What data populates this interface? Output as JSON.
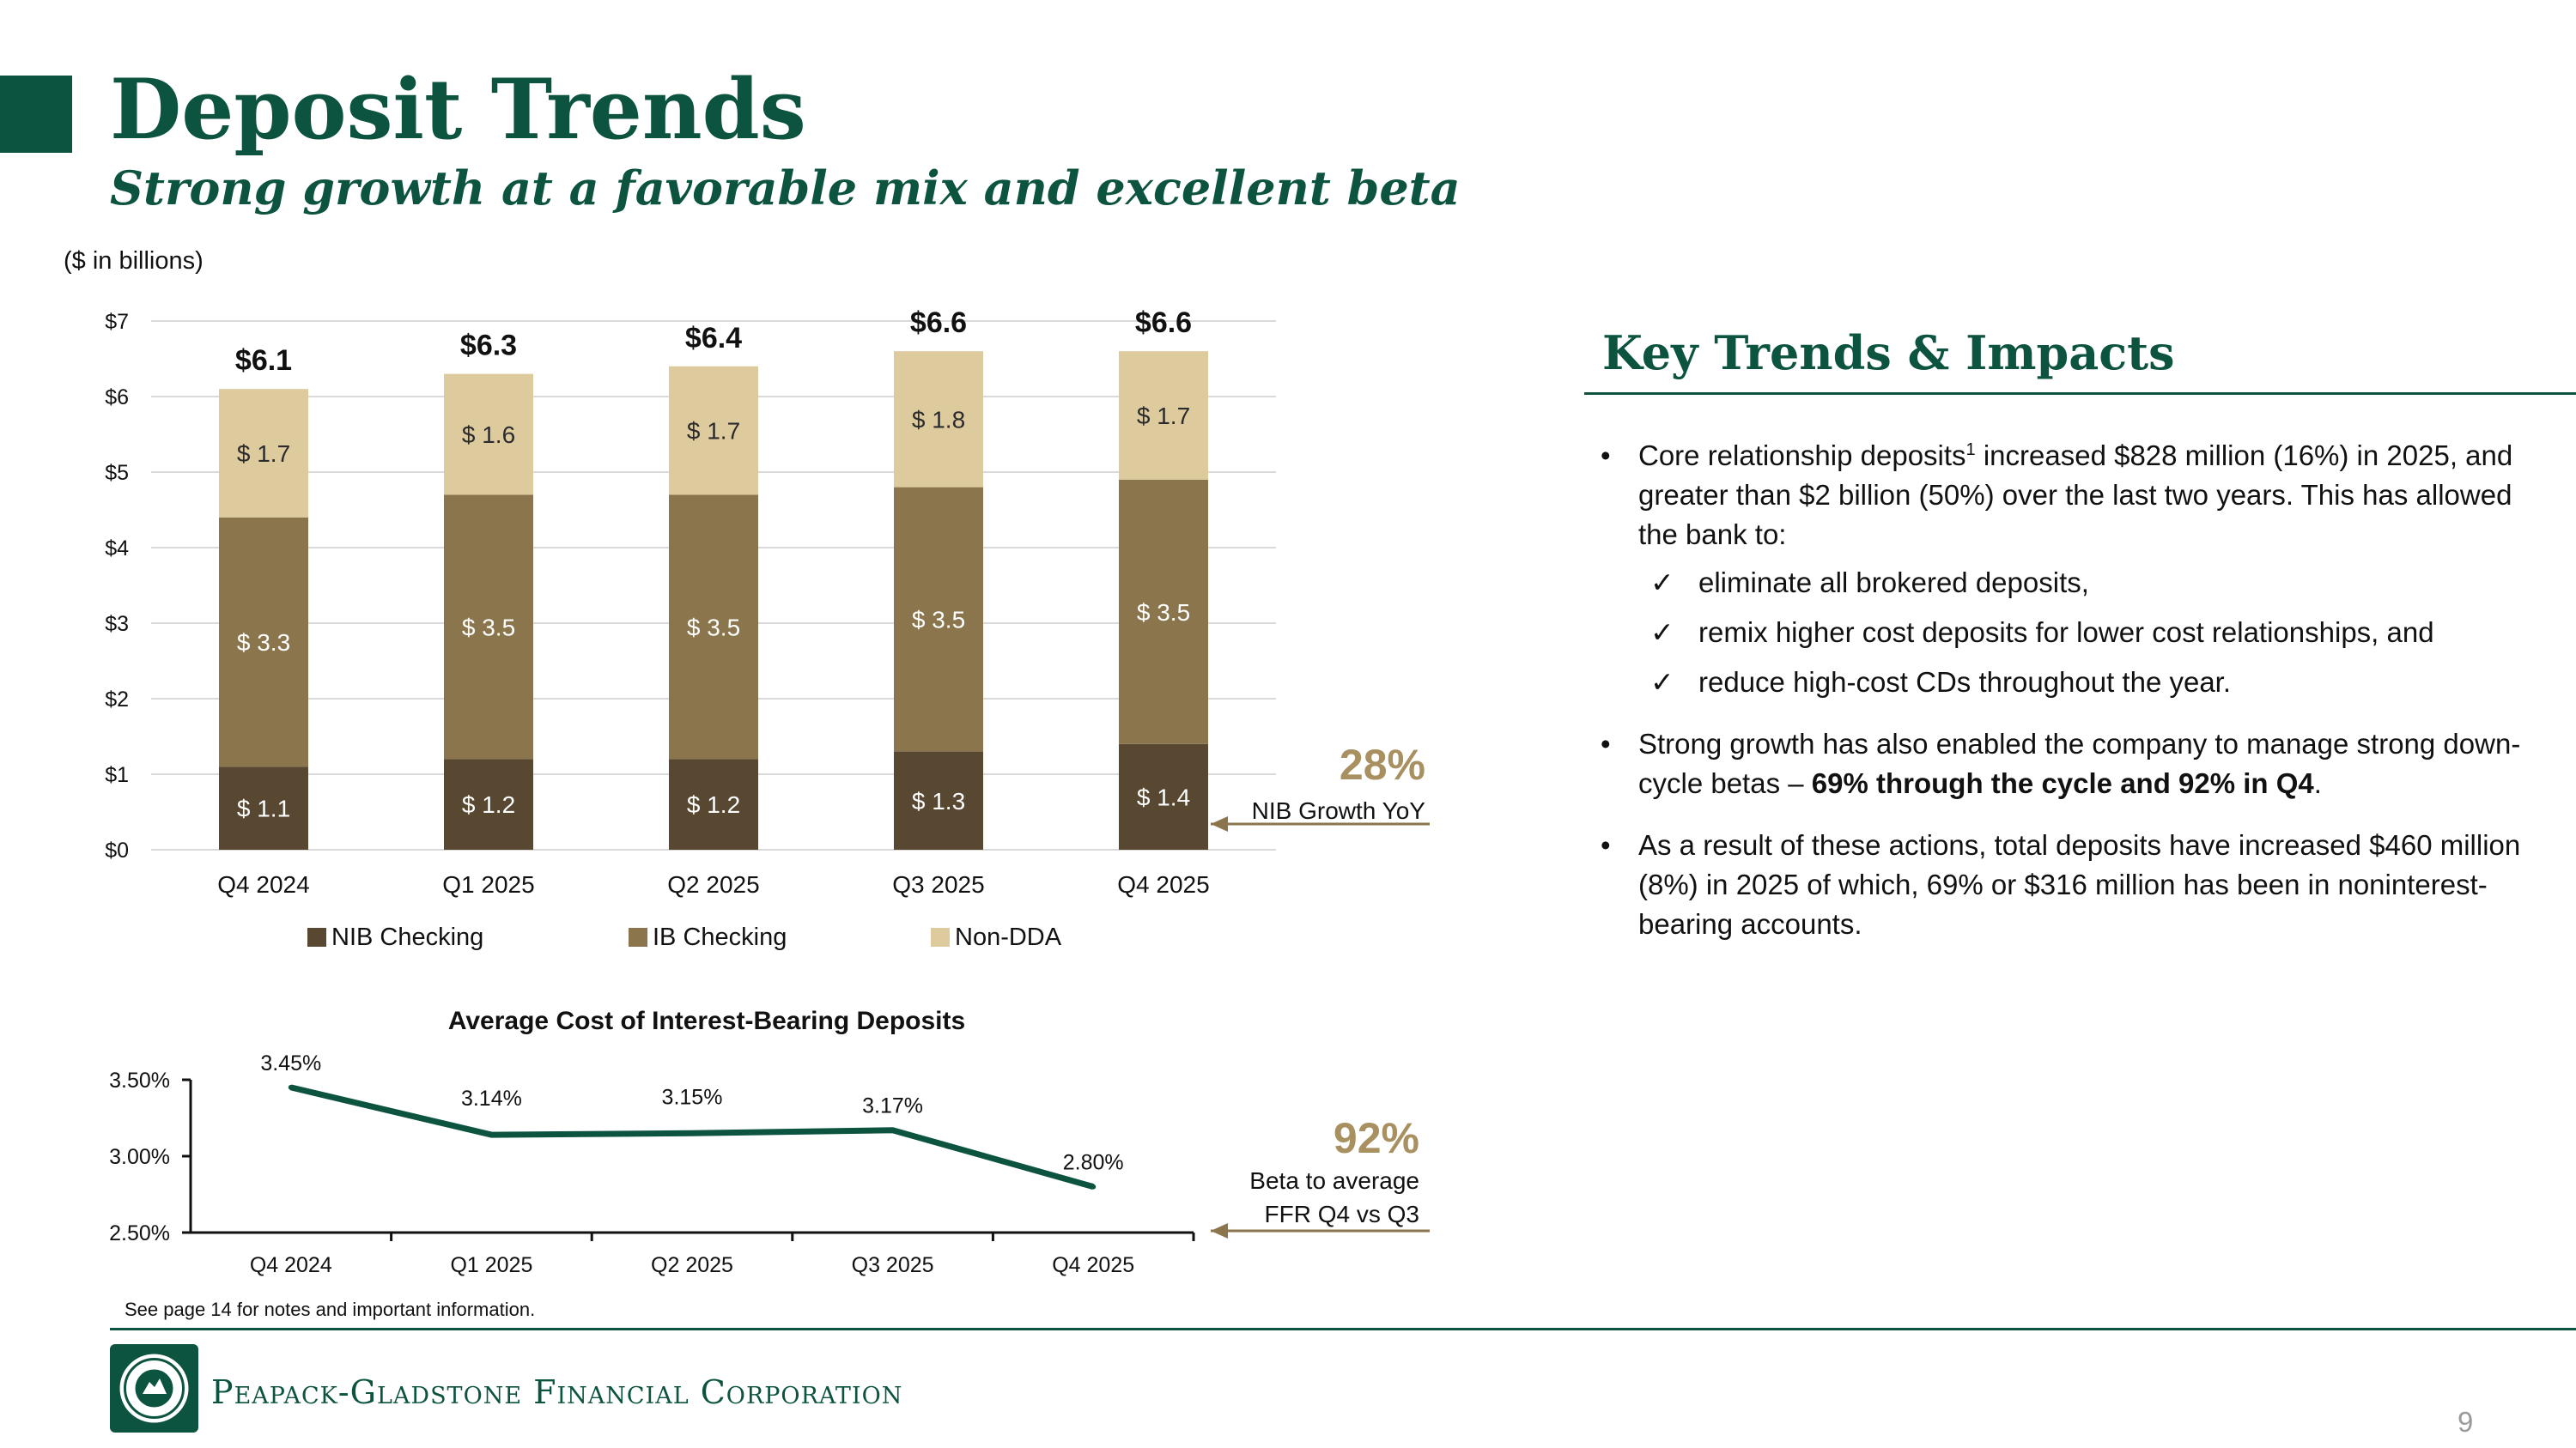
{
  "slide": {
    "title": "Deposit Trends",
    "subtitle": "Strong growth at a favorable mix and excellent beta",
    "units": "($ in billions)",
    "page_number": "9",
    "footnote": "See page 14 for notes and important information.",
    "company": "Peapack-Gladstone Financial Corporation"
  },
  "callouts": {
    "nib_value": "28%",
    "nib_label": "NIB Growth YoY",
    "beta_value": "92%",
    "beta_label_1": "Beta to average",
    "beta_label_2": "FFR Q4 vs Q3"
  },
  "key_trends": {
    "title": "Key Trends & Impacts",
    "bullet1_a": "Core relationship deposits",
    "bullet1_sup": "1",
    "bullet1_b": " increased $828 million (16%) in 2025, and greater than $2 billion (50%) over the last two years. This has allowed the bank to:",
    "checks": [
      "eliminate all brokered deposits,",
      "remix higher cost deposits for lower cost relationships, and",
      "reduce high-cost CDs throughout the year."
    ],
    "bullet2_a": "Strong growth has also enabled the company to manage strong down-cycle betas – ",
    "bullet2_bold": "69% through the cycle and 92% in Q4",
    "bullet2_c": ".",
    "bullet3": "As a result of these actions, total deposits have increased $460 million (8%) in 2025 of which, 69% or $316 million has been in noninterest-bearing accounts.",
    "bullet_glyph": "•",
    "check_glyph": "✓"
  },
  "colors": {
    "brand": "#0c5340",
    "gold": "#a89060",
    "nib": "#584731",
    "ib": "#8b754d",
    "non_dda": "#ddcb9e"
  },
  "chart_data": [
    {
      "type": "bar",
      "stacked": true,
      "categories": [
        "Q4 2024",
        "Q1 2025",
        "Q2 2025",
        "Q3 2025",
        "Q4 2025"
      ],
      "series": [
        {
          "name": "NIB Checking",
          "values": [
            1.1,
            1.2,
            1.2,
            1.3,
            1.4
          ],
          "labels": [
            "$ 1.1",
            "$ 1.2",
            "$ 1.2",
            "$ 1.3",
            "$ 1.4"
          ]
        },
        {
          "name": "IB Checking",
          "values": [
            3.3,
            3.5,
            3.5,
            3.5,
            3.5
          ],
          "labels": [
            "$ 3.3",
            "$ 3.5",
            "$ 3.5",
            "$ 3.5",
            "$ 3.5"
          ]
        },
        {
          "name": "Non-DDA",
          "values": [
            1.7,
            1.6,
            1.7,
            1.8,
            1.7
          ],
          "labels": [
            "$ 1.7",
            "$ 1.6",
            "$ 1.7",
            "$ 1.8",
            "$ 1.7"
          ]
        }
      ],
      "totals": [
        6.1,
        6.3,
        6.4,
        6.6,
        6.6
      ],
      "total_labels": [
        "$6.1",
        "$6.3",
        "$6.4",
        "$6.6",
        "$6.6"
      ],
      "ylim": [
        0,
        7
      ],
      "yticks": [
        0,
        1,
        2,
        3,
        4,
        5,
        6,
        7
      ],
      "ytick_labels": [
        "$0",
        "$1",
        "$2",
        "$3",
        "$4",
        "$5",
        "$6",
        "$7"
      ],
      "grid": true,
      "legend": "bottom"
    },
    {
      "type": "line",
      "title": "Average Cost of Interest-Bearing Deposits",
      "categories": [
        "Q4 2024",
        "Q1 2025",
        "Q2 2025",
        "Q3 2025",
        "Q4 2025"
      ],
      "series": [
        {
          "values": [
            3.45,
            3.14,
            3.15,
            3.17,
            2.8
          ],
          "labels": [
            "3.45%",
            "3.14%",
            "3.15%",
            "3.17%",
            "2.80%"
          ]
        }
      ],
      "ylim": [
        2.5,
        3.5
      ],
      "yticks": [
        2.5,
        3.0,
        3.5
      ],
      "ytick_labels": [
        "2.50%",
        "3.00%",
        "3.50%"
      ],
      "grid": false
    }
  ]
}
